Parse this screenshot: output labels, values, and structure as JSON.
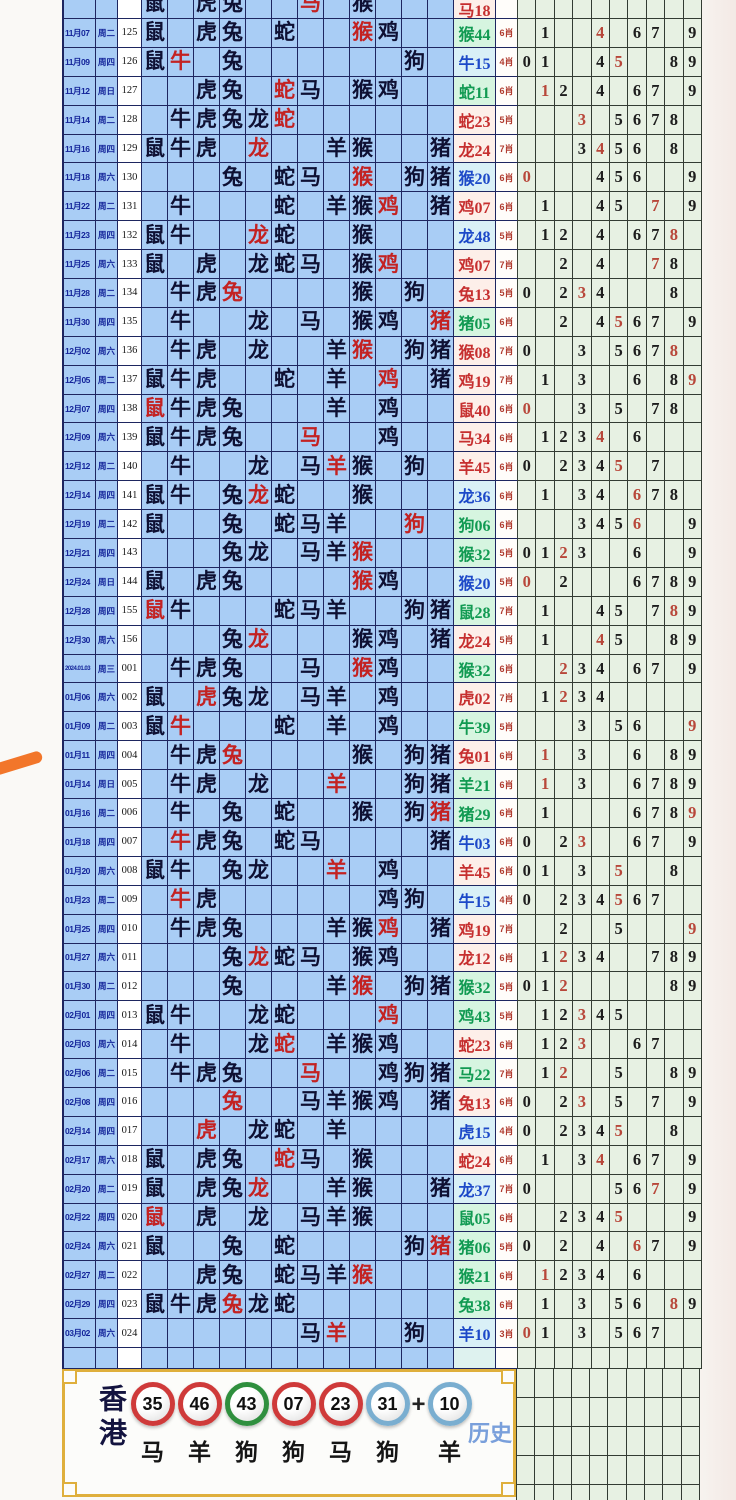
{
  "colors": {
    "number_red": "#c62f2f",
    "number_blue": "#1d49c8",
    "number_green": "#119a52",
    "ball_red": "#cf3a3a",
    "ball_green": "#2f8f3e",
    "ball_blue": "#7aaed0",
    "zodiac_hit_red": "#c32222",
    "grid_blue_bg": "#a9cdf5",
    "grid_green_bg": "#e7f1e3",
    "accent_orange": "#f2762a",
    "frame_gold": "#dfaf3c"
  },
  "chart_data": {
    "type": "table",
    "zodiac_order": [
      "鼠",
      "牛",
      "虎",
      "兔",
      "龙",
      "蛇",
      "马",
      "羊",
      "猴",
      "鸡",
      "狗",
      "猪"
    ],
    "digit_columns": [
      "0",
      "1",
      "2",
      "3",
      "4",
      "5",
      "6",
      "7",
      "8",
      "9"
    ],
    "partial_top_row": {
      "d": "",
      "w": "",
      "n": "",
      "z": [
        "鼠",
        "虎",
        "兔",
        "马",
        "猴"
      ],
      "rz": "马",
      "res": "马18",
      "rc": "red",
      "x": "",
      "g": [],
      "rg": null
    },
    "rows": [
      {
        "d": "11月07",
        "w": "周二",
        "n": "125",
        "z": [
          "鼠",
          "虎",
          "兔",
          "蛇",
          "猴",
          "鸡"
        ],
        "rz": "猴",
        "res": "猴44",
        "rc": "green",
        "x": "6肖",
        "g": [
          1,
          4,
          6,
          7,
          9
        ],
        "rg": 4
      },
      {
        "d": "11月09",
        "w": "周四",
        "n": "126",
        "z": [
          "鼠",
          "牛",
          "兔",
          "狗"
        ],
        "rz": "牛",
        "res": "牛15",
        "rc": "blue",
        "x": "4肖",
        "g": [
          0,
          1,
          4,
          5,
          8,
          9
        ],
        "rg": 5
      },
      {
        "d": "11月12",
        "w": "周日",
        "n": "127",
        "z": [
          "虎",
          "兔",
          "蛇",
          "马",
          "猴",
          "鸡"
        ],
        "rz": "蛇",
        "res": "蛇11",
        "rc": "green",
        "x": "6肖",
        "g": [
          1,
          2,
          4,
          6,
          7,
          9
        ],
        "rg": 1
      },
      {
        "d": "11月14",
        "w": "周二",
        "n": "128",
        "z": [
          "牛",
          "虎",
          "兔",
          "龙",
          "蛇"
        ],
        "rz": "蛇",
        "res": "蛇23",
        "rc": "red",
        "x": "5肖",
        "g": [
          3,
          5,
          6,
          7,
          8
        ],
        "rg": 3
      },
      {
        "d": "11月16",
        "w": "周四",
        "n": "129",
        "z": [
          "鼠",
          "牛",
          "虎",
          "龙",
          "羊",
          "猴",
          "猪"
        ],
        "rz": "龙",
        "res": "龙24",
        "rc": "red",
        "x": "7肖",
        "g": [
          3,
          4,
          5,
          6,
          8
        ],
        "rg": 4
      },
      {
        "d": "11月18",
        "w": "周六",
        "n": "130",
        "z": [
          "兔",
          "蛇",
          "马",
          "猴",
          "狗",
          "猪"
        ],
        "rz": "猴",
        "res": "猴20",
        "rc": "blue",
        "x": "6肖",
        "g": [
          0,
          4,
          5,
          6,
          9
        ],
        "rg": 0
      },
      {
        "d": "11月22",
        "w": "周二",
        "n": "131",
        "z": [
          "牛",
          "蛇",
          "羊",
          "猴",
          "鸡",
          "猪"
        ],
        "rz": "鸡",
        "res": "鸡07",
        "rc": "red",
        "x": "6肖",
        "g": [
          1,
          4,
          5,
          7,
          9
        ],
        "rg": 7
      },
      {
        "d": "11月23",
        "w": "周四",
        "n": "132",
        "z": [
          "鼠",
          "牛",
          "龙",
          "蛇",
          "猴"
        ],
        "rz": "龙",
        "res": "龙48",
        "rc": "blue",
        "x": "5肖",
        "g": [
          1,
          2,
          4,
          6,
          7,
          8
        ],
        "rg": 8
      },
      {
        "d": "11月25",
        "w": "周六",
        "n": "133",
        "z": [
          "鼠",
          "虎",
          "龙",
          "蛇",
          "马",
          "猴",
          "鸡"
        ],
        "rz": "鸡",
        "res": "鸡07",
        "rc": "red",
        "x": "7肖",
        "g": [
          2,
          4,
          7,
          8
        ],
        "rg": 7
      },
      {
        "d": "11月28",
        "w": "周二",
        "n": "134",
        "z": [
          "牛",
          "虎",
          "兔",
          "猴",
          "狗"
        ],
        "rz": "兔",
        "res": "兔13",
        "rc": "red",
        "x": "5肖",
        "g": [
          0,
          2,
          3,
          4,
          8
        ],
        "rg": 3
      },
      {
        "d": "11月30",
        "w": "周四",
        "n": "135",
        "z": [
          "牛",
          "龙",
          "马",
          "猴",
          "鸡",
          "猪"
        ],
        "rz": "猪",
        "res": "猪05",
        "rc": "green",
        "x": "6肖",
        "g": [
          2,
          4,
          5,
          6,
          7,
          9
        ],
        "rg": 5
      },
      {
        "d": "12月02",
        "w": "周六",
        "n": "136",
        "z": [
          "牛",
          "虎",
          "龙",
          "羊",
          "猴",
          "狗",
          "猪"
        ],
        "rz": "猴",
        "res": "猴08",
        "rc": "red",
        "x": "7肖",
        "g": [
          0,
          3,
          5,
          6,
          7,
          8
        ],
        "rg": 8
      },
      {
        "d": "12月05",
        "w": "周二",
        "n": "137",
        "z": [
          "鼠",
          "牛",
          "虎",
          "蛇",
          "羊",
          "鸡",
          "猪"
        ],
        "rz": "鸡",
        "res": "鸡19",
        "rc": "red",
        "x": "7肖",
        "g": [
          1,
          3,
          6,
          8,
          9
        ],
        "rg": 9
      },
      {
        "d": "12月07",
        "w": "周四",
        "n": "138",
        "z": [
          "鼠",
          "牛",
          "虎",
          "兔",
          "羊",
          "鸡"
        ],
        "rz": "鼠",
        "res": "鼠40",
        "rc": "red",
        "x": "6肖",
        "g": [
          0,
          3,
          5,
          7,
          8
        ],
        "rg": 0
      },
      {
        "d": "12月09",
        "w": "周六",
        "n": "139",
        "z": [
          "鼠",
          "牛",
          "虎",
          "兔",
          "马",
          "鸡"
        ],
        "rz": "马",
        "res": "马34",
        "rc": "red",
        "x": "6肖",
        "g": [
          1,
          2,
          3,
          4,
          6
        ],
        "rg": 4
      },
      {
        "d": "12月12",
        "w": "周二",
        "n": "140",
        "z": [
          "牛",
          "龙",
          "马",
          "羊",
          "猴",
          "狗"
        ],
        "rz": "羊",
        "res": "羊45",
        "rc": "red",
        "x": "6肖",
        "g": [
          0,
          2,
          3,
          4,
          5,
          7
        ],
        "rg": 5
      },
      {
        "d": "12月14",
        "w": "周四",
        "n": "141",
        "z": [
          "鼠",
          "牛",
          "兔",
          "龙",
          "蛇",
          "猴"
        ],
        "rz": "龙",
        "res": "龙36",
        "rc": "blue",
        "x": "6肖",
        "g": [
          1,
          3,
          4,
          6,
          7,
          8
        ],
        "rg": 6
      },
      {
        "d": "12月19",
        "w": "周二",
        "n": "142",
        "z": [
          "鼠",
          "兔",
          "蛇",
          "马",
          "羊",
          "狗"
        ],
        "rz": "狗",
        "res": "狗06",
        "rc": "green",
        "x": "6肖",
        "g": [
          3,
          4,
          5,
          6,
          9
        ],
        "rg": 6
      },
      {
        "d": "12月21",
        "w": "周四",
        "n": "143",
        "z": [
          "兔",
          "龙",
          "马",
          "羊",
          "猴"
        ],
        "rz": "猴",
        "res": "猴32",
        "rc": "green",
        "x": "5肖",
        "g": [
          0,
          1,
          2,
          3,
          6,
          9
        ],
        "rg": 2
      },
      {
        "d": "12月24",
        "w": "周日",
        "n": "144",
        "z": [
          "鼠",
          "虎",
          "兔",
          "猴",
          "鸡"
        ],
        "rz": "猴",
        "res": "猴20",
        "rc": "blue",
        "x": "5肖",
        "g": [
          0,
          2,
          6,
          7,
          8,
          9
        ],
        "rg": 0
      },
      {
        "d": "12月28",
        "w": "周四",
        "n": "155",
        "z": [
          "鼠",
          "牛",
          "蛇",
          "马",
          "羊",
          "狗",
          "猪"
        ],
        "rz": "鼠",
        "res": "鼠28",
        "rc": "green",
        "x": "7肖",
        "g": [
          1,
          4,
          5,
          7,
          8,
          9
        ],
        "rg": 8
      },
      {
        "d": "12月30",
        "w": "周六",
        "n": "156",
        "z": [
          "兔",
          "龙",
          "猴",
          "鸡",
          "猪"
        ],
        "rz": "龙",
        "res": "龙24",
        "rc": "red",
        "x": "5肖",
        "g": [
          1,
          4,
          5,
          8,
          9
        ],
        "rg": 4
      },
      {
        "d": "2024.01.03",
        "w": "周三",
        "n": "001",
        "z": [
          "牛",
          "虎",
          "兔",
          "马",
          "猴",
          "鸡"
        ],
        "rz": "猴",
        "res": "猴32",
        "rc": "green",
        "x": "6肖",
        "g": [
          2,
          3,
          4,
          6,
          7,
          9
        ],
        "rg": 2
      },
      {
        "d": "01月06",
        "w": "周六",
        "n": "002",
        "z": [
          "鼠",
          "虎",
          "兔",
          "龙",
          "马",
          "羊",
          "鸡"
        ],
        "rz": "虎",
        "res": "虎02",
        "rc": "red",
        "x": "7肖",
        "g": [
          1,
          2,
          3,
          4
        ],
        "rg": 2
      },
      {
        "d": "01月09",
        "w": "周二",
        "n": "003",
        "z": [
          "鼠",
          "牛",
          "蛇",
          "羊",
          "鸡"
        ],
        "rz": "牛",
        "res": "牛39",
        "rc": "green",
        "x": "5肖",
        "g": [
          3,
          5,
          6,
          9
        ],
        "rg": 9
      },
      {
        "d": "01月11",
        "w": "周四",
        "n": "004",
        "z": [
          "牛",
          "虎",
          "兔",
          "猴",
          "狗",
          "猪"
        ],
        "rz": "兔",
        "res": "兔01",
        "rc": "red",
        "x": "6肖",
        "g": [
          1,
          3,
          6,
          8,
          9
        ],
        "rg": 1
      },
      {
        "d": "01月14",
        "w": "周日",
        "n": "005",
        "z": [
          "牛",
          "虎",
          "龙",
          "羊",
          "狗",
          "猪"
        ],
        "rz": "羊",
        "res": "羊21",
        "rc": "green",
        "x": "6肖",
        "g": [
          1,
          3,
          6,
          7,
          8,
          9
        ],
        "rg": 1
      },
      {
        "d": "01月16",
        "w": "周二",
        "n": "006",
        "z": [
          "牛",
          "兔",
          "蛇",
          "猴",
          "狗",
          "猪"
        ],
        "rz": "猪",
        "res": "猪29",
        "rc": "green",
        "x": "6肖",
        "g": [
          1,
          6,
          7,
          8,
          9
        ],
        "rg": 9
      },
      {
        "d": "01月18",
        "w": "周四",
        "n": "007",
        "z": [
          "牛",
          "虎",
          "兔",
          "蛇",
          "马",
          "猪"
        ],
        "rz": "牛",
        "res": "牛03",
        "rc": "blue",
        "x": "6肖",
        "g": [
          0,
          2,
          3,
          6,
          7,
          9
        ],
        "rg": 3
      },
      {
        "d": "01月20",
        "w": "周六",
        "n": "008",
        "z": [
          "鼠",
          "牛",
          "兔",
          "龙",
          "羊",
          "鸡"
        ],
        "rz": "羊",
        "res": "羊45",
        "rc": "red",
        "x": "6肖",
        "g": [
          0,
          1,
          3,
          5,
          8
        ],
        "rg": 5
      },
      {
        "d": "01月23",
        "w": "周二",
        "n": "009",
        "z": [
          "牛",
          "虎",
          "鸡",
          "狗"
        ],
        "rz": "牛",
        "res": "牛15",
        "rc": "blue",
        "x": "4肖",
        "g": [
          0,
          2,
          3,
          4,
          5,
          6,
          7
        ],
        "rg": 5
      },
      {
        "d": "01月25",
        "w": "周四",
        "n": "010",
        "z": [
          "牛",
          "虎",
          "兔",
          "羊",
          "猴",
          "鸡",
          "猪"
        ],
        "rz": "鸡",
        "res": "鸡19",
        "rc": "red",
        "x": "7肖",
        "g": [
          2,
          5,
          9
        ],
        "rg": 9
      },
      {
        "d": "01月27",
        "w": "周六",
        "n": "011",
        "z": [
          "兔",
          "龙",
          "蛇",
          "马",
          "猴",
          "鸡"
        ],
        "rz": "龙",
        "res": "龙12",
        "rc": "red",
        "x": "6肖",
        "g": [
          1,
          2,
          3,
          4,
          7,
          8,
          9
        ],
        "rg": 2
      },
      {
        "d": "01月30",
        "w": "周二",
        "n": "012",
        "z": [
          "兔",
          "羊",
          "猴",
          "狗",
          "猪"
        ],
        "rz": "猴",
        "res": "猴32",
        "rc": "green",
        "x": "5肖",
        "g": [
          0,
          1,
          2,
          8,
          9
        ],
        "rg": 2
      },
      {
        "d": "02月01",
        "w": "周四",
        "n": "013",
        "z": [
          "鼠",
          "牛",
          "龙",
          "蛇",
          "鸡"
        ],
        "rz": "鸡",
        "res": "鸡43",
        "rc": "green",
        "x": "5肖",
        "g": [
          1,
          2,
          3,
          4,
          5
        ],
        "rg": 3
      },
      {
        "d": "02月03",
        "w": "周六",
        "n": "014",
        "z": [
          "牛",
          "龙",
          "蛇",
          "羊",
          "猴",
          "鸡"
        ],
        "rz": "蛇",
        "res": "蛇23",
        "rc": "red",
        "x": "6肖",
        "g": [
          1,
          2,
          3,
          6,
          7
        ],
        "rg": 3
      },
      {
        "d": "02月06",
        "w": "周二",
        "n": "015",
        "z": [
          "牛",
          "虎",
          "兔",
          "马",
          "鸡",
          "狗",
          "猪"
        ],
        "rz": "马",
        "res": "马22",
        "rc": "green",
        "x": "7肖",
        "g": [
          1,
          2,
          5,
          8,
          9
        ],
        "rg": 2
      },
      {
        "d": "02月08",
        "w": "周四",
        "n": "016",
        "z": [
          "兔",
          "马",
          "羊",
          "猴",
          "鸡",
          "猪"
        ],
        "rz": "兔",
        "res": "兔13",
        "rc": "red",
        "x": "6肖",
        "g": [
          0,
          2,
          3,
          5,
          7,
          9
        ],
        "rg": 3
      },
      {
        "d": "02月14",
        "w": "周四",
        "n": "017",
        "z": [
          "虎",
          "龙",
          "蛇",
          "羊"
        ],
        "rz": "虎",
        "res": "虎15",
        "rc": "blue",
        "x": "4肖",
        "g": [
          0,
          2,
          3,
          4,
          5,
          8
        ],
        "rg": 5
      },
      {
        "d": "02月17",
        "w": "周六",
        "n": "018",
        "z": [
          "鼠",
          "虎",
          "兔",
          "蛇",
          "马",
          "猴"
        ],
        "rz": "蛇",
        "res": "蛇24",
        "rc": "red",
        "x": "6肖",
        "g": [
          1,
          3,
          4,
          6,
          7,
          9
        ],
        "rg": 4
      },
      {
        "d": "02月20",
        "w": "周二",
        "n": "019",
        "z": [
          "鼠",
          "虎",
          "兔",
          "龙",
          "羊",
          "猴",
          "猪"
        ],
        "rz": "龙",
        "res": "龙37",
        "rc": "blue",
        "x": "7肖",
        "g": [
          0,
          5,
          6,
          7,
          9
        ],
        "rg": 7
      },
      {
        "d": "02月22",
        "w": "周四",
        "n": "020",
        "z": [
          "鼠",
          "虎",
          "龙",
          "马",
          "羊",
          "猴"
        ],
        "rz": "鼠",
        "res": "鼠05",
        "rc": "green",
        "x": "6肖",
        "g": [
          2,
          3,
          4,
          5,
          9
        ],
        "rg": 5
      },
      {
        "d": "02月24",
        "w": "周六",
        "n": "021",
        "z": [
          "鼠",
          "兔",
          "蛇",
          "狗",
          "猪"
        ],
        "rz": "猪",
        "res": "猪06",
        "rc": "green",
        "x": "5肖",
        "g": [
          0,
          2,
          4,
          6,
          7,
          9
        ],
        "rg": 6
      },
      {
        "d": "02月27",
        "w": "周二",
        "n": "022",
        "z": [
          "虎",
          "兔",
          "蛇",
          "马",
          "羊",
          "猴"
        ],
        "rz": "猴",
        "res": "猴21",
        "rc": "green",
        "x": "6肖",
        "g": [
          1,
          2,
          3,
          4,
          6
        ],
        "rg": 1
      },
      {
        "d": "02月29",
        "w": "周四",
        "n": "023",
        "z": [
          "鼠",
          "牛",
          "虎",
          "兔",
          "龙",
          "蛇"
        ],
        "rz": "兔",
        "res": "兔38",
        "rc": "green",
        "x": "6肖",
        "g": [
          1,
          3,
          5,
          6,
          8,
          9
        ],
        "rg": 8
      },
      {
        "d": "03月02",
        "w": "周六",
        "n": "024",
        "z": [
          "马",
          "羊",
          "狗"
        ],
        "rz": "羊",
        "res": "羊10",
        "rc": "blue",
        "x": "3肖",
        "g": [
          0,
          1,
          3,
          5,
          6,
          7
        ],
        "rg": 0
      }
    ],
    "draw": {
      "region": "香港",
      "history_label": "历史",
      "plus": "+",
      "balls": [
        {
          "num": "35",
          "color": "red",
          "zodiac": "马"
        },
        {
          "num": "46",
          "color": "red",
          "zodiac": "羊"
        },
        {
          "num": "43",
          "color": "green",
          "zodiac": "狗"
        },
        {
          "num": "07",
          "color": "red",
          "zodiac": "狗"
        },
        {
          "num": "23",
          "color": "red",
          "zodiac": "马"
        },
        {
          "num": "31",
          "color": "blue",
          "zodiac": "狗"
        },
        {
          "num": "10",
          "color": "blue",
          "zodiac": "羊"
        }
      ]
    }
  }
}
